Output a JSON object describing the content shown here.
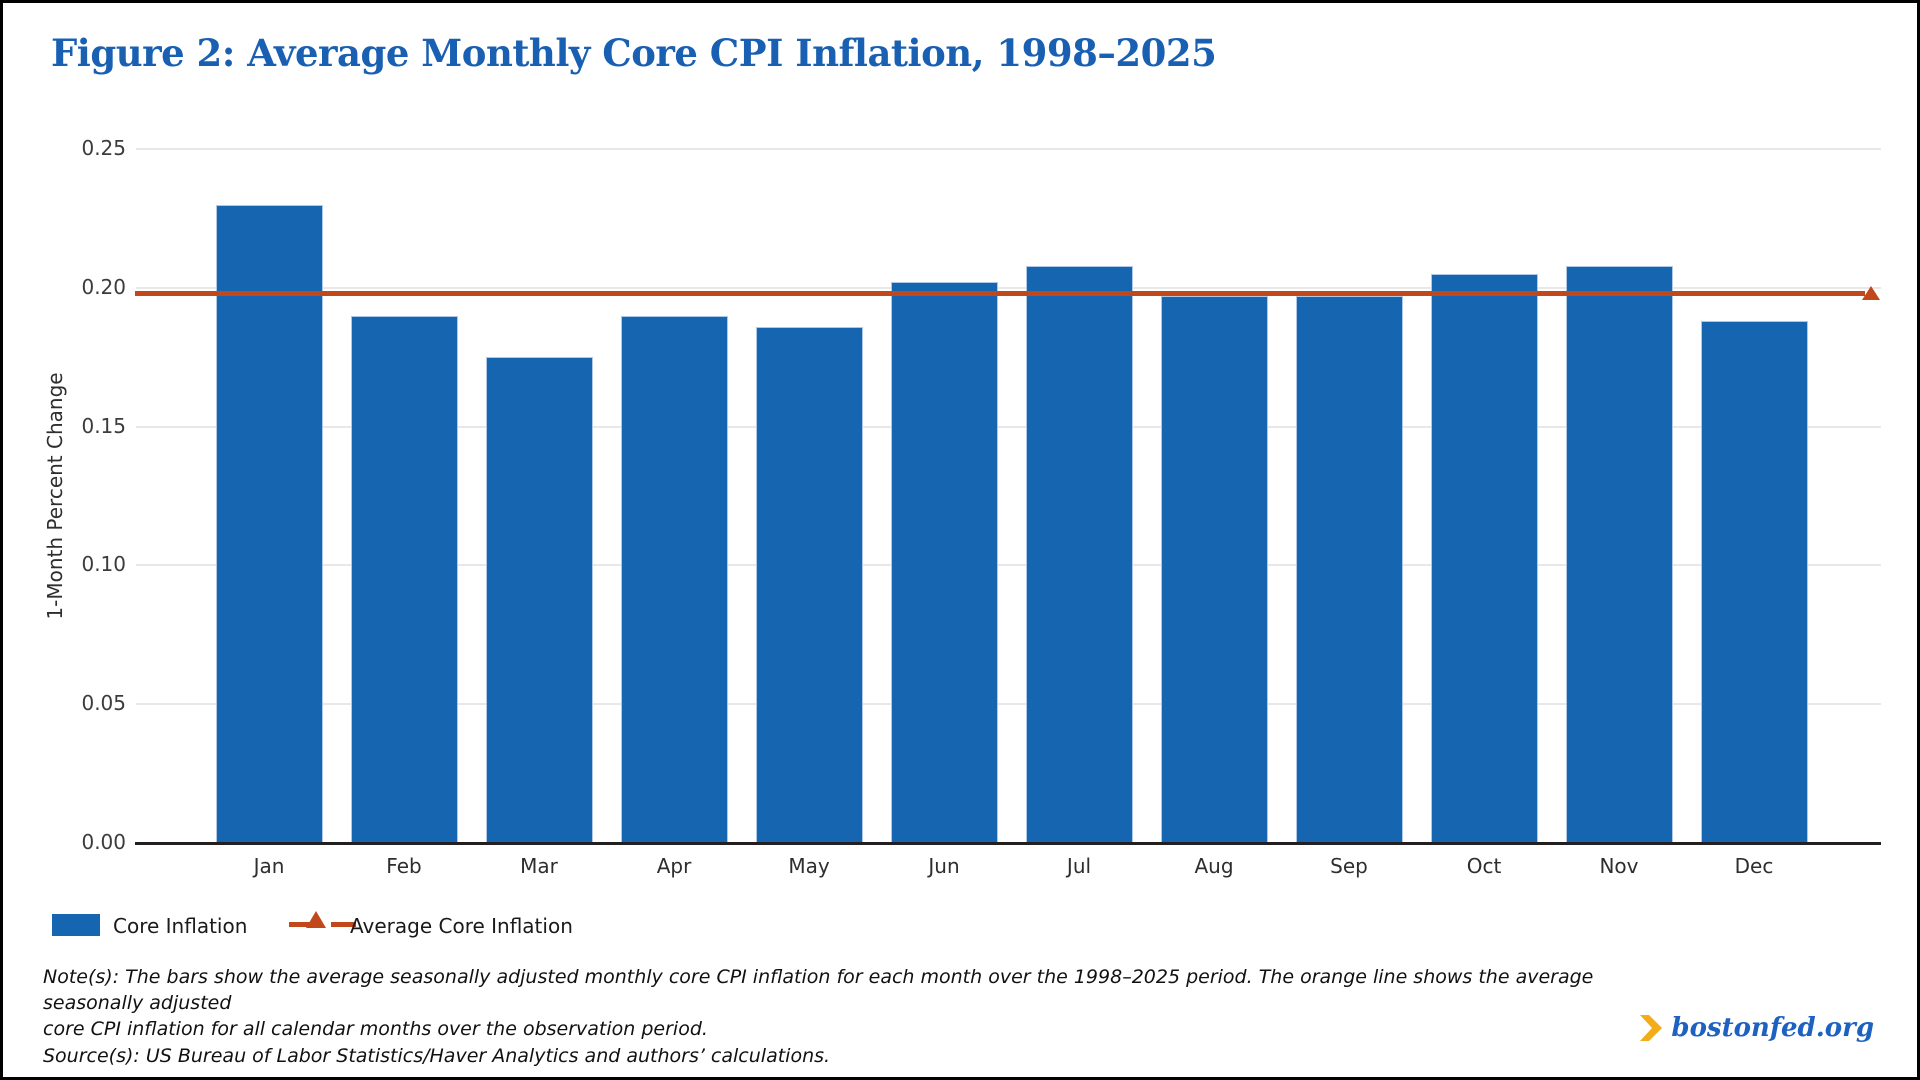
{
  "title": "Figure 2: Average Monthly Core CPI Inflation, 1998–2025",
  "colors": {
    "bar_blue": "#1565b0",
    "bar_edge": "#aec8e6",
    "average_orange": "#c0481a",
    "title_blue": "#1a60b2",
    "gridline_gray": "#e8e8e8",
    "baseline_black": "#231f20",
    "logo_blue": "#1d61c1",
    "logo_gold": "#f3ac1a"
  },
  "chart_data": {
    "type": "bar",
    "title": "Figure 2: Average Monthly Core CPI Inflation, 1998–2025",
    "categories": [
      "Jan",
      "Feb",
      "Mar",
      "Apr",
      "May",
      "Jun",
      "Jul",
      "Aug",
      "Sep",
      "Oct",
      "Nov",
      "Dec"
    ],
    "series": [
      {
        "name": "Core Inflation",
        "type": "bar",
        "color": "#1565b0",
        "values": [
          0.23,
          0.19,
          0.175,
          0.19,
          0.186,
          0.202,
          0.208,
          0.197,
          0.197,
          0.205,
          0.208,
          0.188
        ]
      },
      {
        "name": "Average Core Inflation",
        "type": "line",
        "color": "#c0481a",
        "value": 0.198,
        "marker": "triangle-up-at-right-end"
      }
    ],
    "xlabel": "",
    "ylabel": "1-Month Percent Change",
    "ylim": [
      0,
      0.25
    ],
    "yticks": [
      "0.00",
      "0.05",
      "0.10",
      "0.15",
      "0.20",
      "0.25"
    ],
    "grid": true,
    "legend_position": "bottom-left"
  },
  "legend": {
    "core_label": "Core Inflation",
    "average_label": "Average Core Inflation"
  },
  "notes": {
    "line1": "Note(s): The bars show the average seasonally adjusted monthly core CPI inflation for each month over the 1998–2025 period. The orange line shows the average seasonally adjusted",
    "line2": "core CPI inflation for all calendar months over the observation period.",
    "source": "Source(s): US Bureau of Labor Statistics/Haver Analytics and authors’ calculations."
  },
  "footer": {
    "logo_text": "bostonfed.org"
  }
}
